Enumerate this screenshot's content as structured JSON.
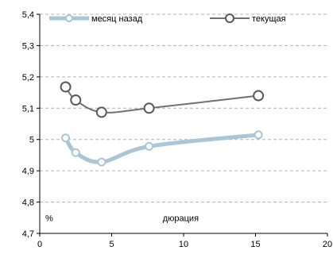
{
  "chart_data": {
    "type": "line",
    "title": "",
    "xlabel": "дюрация",
    "ylabel": "%",
    "xlim": [
      0,
      20
    ],
    "ylim": [
      4.7,
      5.4
    ],
    "xticks": [
      0,
      5,
      10,
      15,
      20
    ],
    "yticks": [
      4.7,
      4.8,
      4.9,
      5.0,
      5.1,
      5.2,
      5.3,
      5.4
    ],
    "ytick_labels": [
      "4,7",
      "4,8",
      "4,9",
      "5",
      "5,1",
      "5,2",
      "5,3",
      "5,4"
    ],
    "xtick_labels": [
      "0",
      "5",
      "10",
      "15",
      "20"
    ],
    "grid": "horizontal-dashed",
    "legend_position": "top",
    "series": [
      {
        "name": "месяц назад",
        "color": "#a9c6d6",
        "points": [
          [
            1.8,
            5.005
          ],
          [
            2.5,
            4.958
          ],
          [
            4.3,
            4.928
          ],
          [
            7.6,
            4.978
          ],
          [
            15.2,
            5.015
          ]
        ]
      },
      {
        "name": "текущая",
        "color": "#707070",
        "points": [
          [
            1.8,
            5.168
          ],
          [
            2.5,
            5.126
          ],
          [
            4.3,
            5.087
          ],
          [
            7.6,
            5.1
          ],
          [
            15.2,
            5.14
          ]
        ]
      }
    ]
  }
}
